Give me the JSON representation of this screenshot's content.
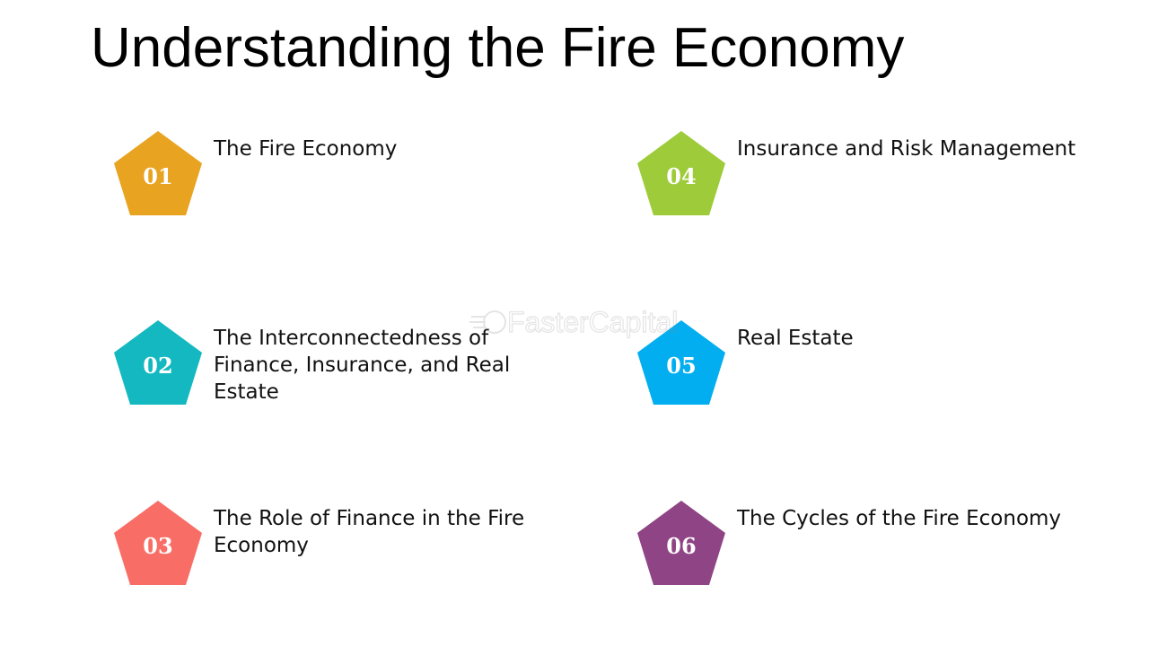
{
  "title": "Understanding the Fire Economy",
  "items": [
    {
      "number": "01",
      "label": "The Fire Economy",
      "color": "#E8A321"
    },
    {
      "number": "02",
      "label": "The Interconnectedness of Finance, Insurance, and Real Estate",
      "color": "#13B8C0"
    },
    {
      "number": "03",
      "label": "The Role of Finance in the Fire Economy",
      "color": "#F86E67"
    },
    {
      "number": "04",
      "label": "Insurance and Risk Management",
      "color": "#9ECB3A"
    },
    {
      "number": "05",
      "label": "Real Estate",
      "color": "#02AEEF"
    },
    {
      "number": "06",
      "label": "The Cycles of the Fire Economy",
      "color": "#8F4585"
    }
  ],
  "watermark": {
    "text": "FasterCapital"
  }
}
